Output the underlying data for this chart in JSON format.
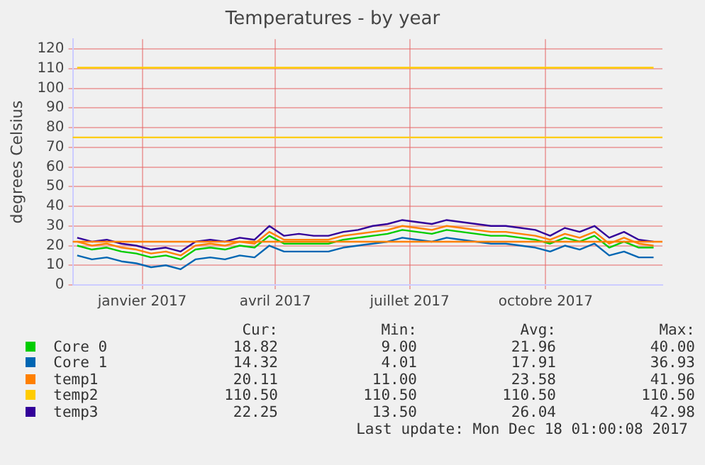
{
  "chart_data": {
    "type": "line",
    "title": "Temperatures - by year",
    "ylabel": "degrees Celsius",
    "x": [
      "2016-11-18",
      "2016-11-28",
      "2016-12-08",
      "2016-12-18",
      "2016-12-28",
      "2017-01-07",
      "2017-01-17",
      "2017-01-27",
      "2017-02-06",
      "2017-02-16",
      "2017-02-26",
      "2017-03-08",
      "2017-03-18",
      "2017-03-28",
      "2017-04-07",
      "2017-04-17",
      "2017-04-27",
      "2017-05-07",
      "2017-05-17",
      "2017-05-27",
      "2017-06-06",
      "2017-06-16",
      "2017-06-26",
      "2017-07-06",
      "2017-07-16",
      "2017-07-26",
      "2017-08-05",
      "2017-08-15",
      "2017-08-25",
      "2017-09-04",
      "2017-09-14",
      "2017-09-24",
      "2017-10-04",
      "2017-10-14",
      "2017-10-24",
      "2017-11-03",
      "2017-11-13",
      "2017-11-23",
      "2017-12-03",
      "2017-12-13"
    ],
    "series": [
      {
        "name": "Core 0",
        "color": "#00cc00",
        "values": [
          20,
          18,
          19,
          17,
          16,
          14,
          15,
          13,
          18,
          19,
          18,
          20,
          19,
          25,
          21,
          21,
          21,
          21,
          23,
          24,
          25,
          26,
          28,
          27,
          26,
          28,
          27,
          26,
          25,
          25,
          24,
          23,
          21,
          24,
          22,
          25,
          19,
          22,
          19,
          19
        ]
      },
      {
        "name": "Core 1",
        "color": "#0066b3",
        "values": [
          15,
          13,
          14,
          12,
          11,
          9,
          10,
          8,
          13,
          14,
          13,
          15,
          14,
          20,
          17,
          17,
          17,
          17,
          19,
          20,
          21,
          22,
          24,
          23,
          22,
          24,
          23,
          22,
          21,
          21,
          20,
          19,
          17,
          20,
          18,
          21,
          15,
          17,
          14,
          14
        ]
      },
      {
        "name": "temp1",
        "color": "#ff8000",
        "values": [
          22,
          20,
          21,
          19,
          18,
          16,
          17,
          15,
          20,
          21,
          20,
          22,
          21,
          27,
          23,
          23,
          23,
          23,
          25,
          26,
          27,
          28,
          30,
          29,
          28,
          30,
          29,
          28,
          27,
          27,
          26,
          25,
          23,
          26,
          24,
          27,
          21,
          24,
          21,
          20
        ]
      },
      {
        "name": "temp2",
        "color": "#ffcc00",
        "values": [
          110.5,
          110.5,
          110.5,
          110.5,
          110.5,
          110.5,
          110.5,
          110.5,
          110.5,
          110.5,
          110.5,
          110.5,
          110.5,
          110.5,
          110.5,
          110.5,
          110.5,
          110.5,
          110.5,
          110.5,
          110.5,
          110.5,
          110.5,
          110.5,
          110.5,
          110.5,
          110.5,
          110.5,
          110.5,
          110.5,
          110.5,
          110.5,
          110.5,
          110.5,
          110.5,
          110.5,
          110.5,
          110.5,
          110.5,
          110.5
        ]
      },
      {
        "name": "temp3",
        "color": "#330099",
        "values": [
          24,
          22,
          23,
          21,
          20,
          18,
          19,
          17,
          22,
          23,
          22,
          24,
          23,
          30,
          25,
          26,
          25,
          25,
          27,
          28,
          30,
          31,
          33,
          32,
          31,
          33,
          32,
          31,
          30,
          30,
          29,
          28,
          25,
          29,
          27,
          30,
          24,
          27,
          23,
          22
        ]
      }
    ],
    "xlim": [
      "2016-11-15",
      "2017-12-19"
    ],
    "xticks": [
      {
        "value": "2017-01-01",
        "label": "janvier 2017"
      },
      {
        "value": "2017-04-01",
        "label": "avril 2017"
      },
      {
        "value": "2017-07-01",
        "label": "juillet 2017"
      },
      {
        "value": "2017-10-01",
        "label": "octobre 2017"
      }
    ],
    "ylim": [
      0,
      125
    ],
    "yticks": [
      0,
      10,
      20,
      30,
      40,
      50,
      60,
      70,
      80,
      90,
      100,
      110,
      120
    ],
    "ref_lines": [
      {
        "axis": "y",
        "value": 75,
        "color": "#ffcc00"
      },
      {
        "axis": "y",
        "value": 22,
        "color": "#ff8000"
      }
    ],
    "grid": true,
    "legend": "bottom",
    "marker": "none",
    "line_style": "solid",
    "annotations": [
      "Cur:",
      "Min:",
      "Avg:",
      "Max:",
      "18.82",
      "9.00",
      "21.96",
      "40.00",
      "14.32",
      "4.01",
      "17.91",
      "36.93",
      "20.11",
      "11.00",
      "23.58",
      "41.96",
      "110.50",
      "110.50",
      "110.50",
      "110.50",
      "22.25",
      "13.50",
      "26.04",
      "42.98",
      "Last update: Mon Dec 18 01:00:08 2017"
    ]
  }
}
